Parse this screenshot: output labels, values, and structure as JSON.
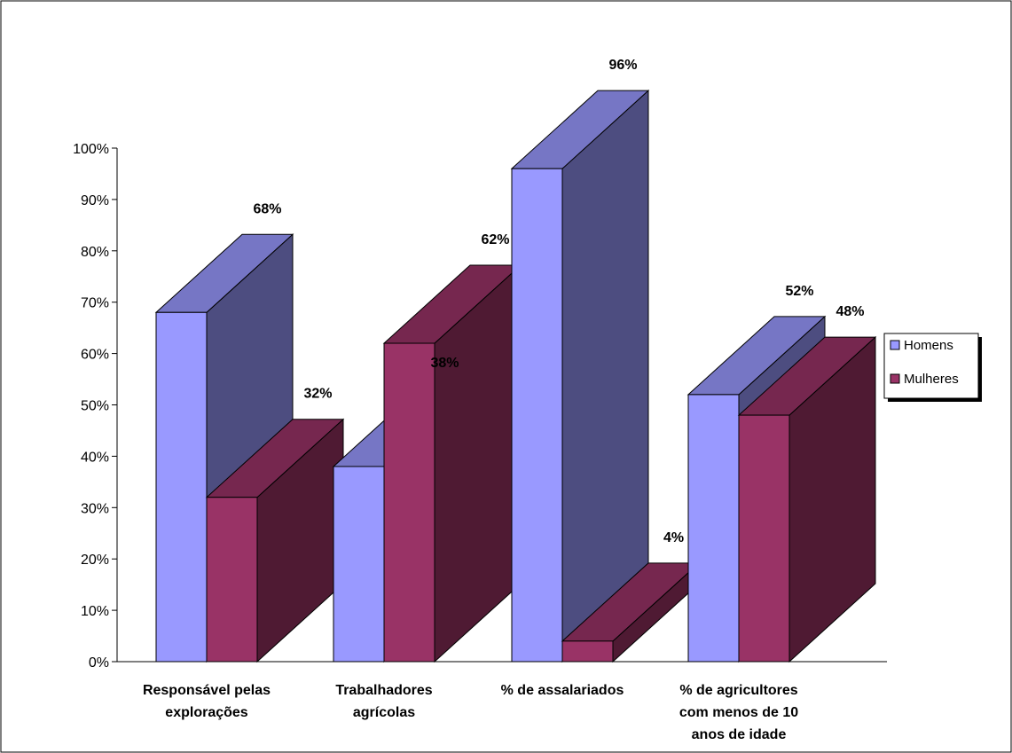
{
  "chart_data": {
    "type": "bar",
    "title": "",
    "xlabel": "",
    "ylabel": "",
    "ylim": [
      0,
      100
    ],
    "y_ticks": [
      "0%",
      "10%",
      "20%",
      "30%",
      "40%",
      "50%",
      "60%",
      "70%",
      "80%",
      "90%",
      "100%"
    ],
    "categories": [
      [
        "Responsável pelas",
        "explorações"
      ],
      [
        "Trabalhadores",
        "agrícolas"
      ],
      [
        "% de assalariados"
      ],
      [
        "% de agricultores",
        "com menos de 10",
        "anos de idade"
      ]
    ],
    "series": [
      {
        "name": "Homens",
        "values": [
          68,
          38,
          96,
          52
        ],
        "labels": [
          "68%",
          "38%",
          "96%",
          "52%"
        ]
      },
      {
        "name": "Mulheres",
        "values": [
          32,
          62,
          4,
          48
        ],
        "labels": [
          "32%",
          "62%",
          "4%",
          "48%"
        ]
      }
    ],
    "legend_placement": "right",
    "grid": false,
    "three_d": true
  },
  "colors": {
    "homens_front": "#9999FF",
    "homens_top": "#7676C5",
    "homens_side": "#4D4D80",
    "mulheres_front": "#993366",
    "mulheres_top": "#76274F",
    "mulheres_side": "#4F1A33"
  }
}
